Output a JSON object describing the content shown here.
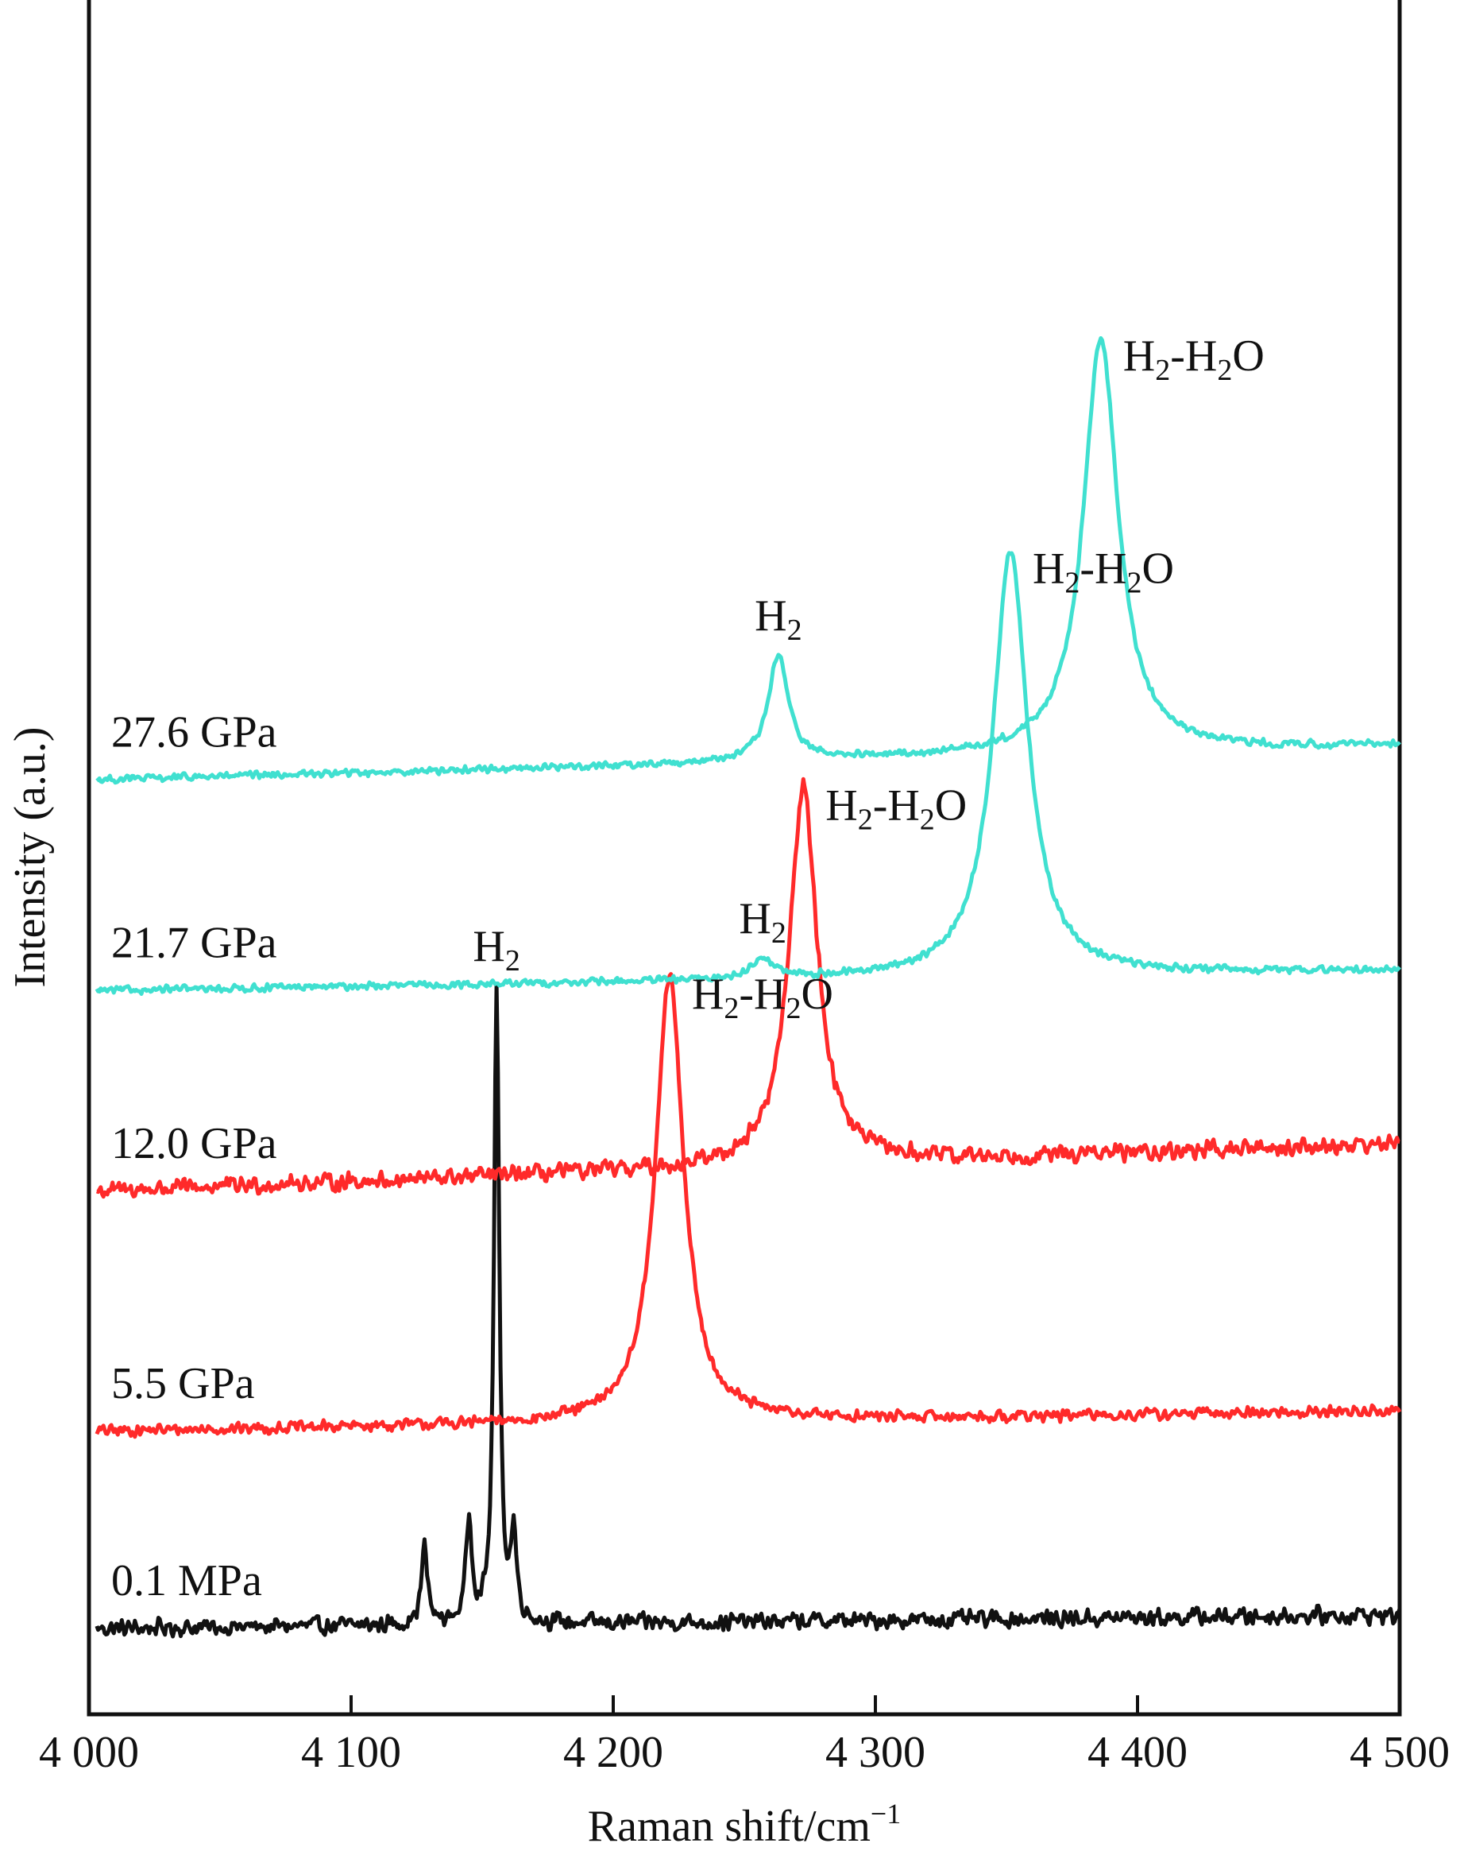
{
  "chart_data": {
    "type": "line",
    "title": "",
    "xlabel": "Raman shift/cm",
    "xlabel_sup": "−1",
    "ylabel": "Intensity (a.u.)",
    "xlim": [
      4000,
      4500
    ],
    "x_ticks": [
      4000,
      4100,
      4200,
      4300,
      4400,
      4500
    ],
    "x_tick_labels": [
      "4 000",
      "4 100",
      "4 200",
      "4 300",
      "4 400",
      "4 500"
    ],
    "y_ticks": [],
    "grid": false,
    "legend": "none",
    "series": [
      {
        "name": "0.1 MPa",
        "color": "#111111",
        "baseline": 0.05,
        "slope": 0.008,
        "noise": 0.006,
        "peaks": [
          {
            "x": 4128,
            "h": 0.045,
            "w": 1.4
          },
          {
            "x": 4145,
            "h": 0.06,
            "w": 1.4
          },
          {
            "x": 4155.5,
            "h": 0.37,
            "w": 1.2
          },
          {
            "x": 4162,
            "h": 0.05,
            "w": 1.3
          }
        ],
        "labels": [
          {
            "text": "H",
            "sub": "2",
            "peak_x": 4155.5
          }
        ]
      },
      {
        "name": "5.5 GPa",
        "color": "#ff2a2a",
        "baseline": 0.165,
        "slope": 0.012,
        "noise": 0.004,
        "peaks": [
          {
            "x": 4221.5,
            "h": 0.26,
            "w": 6.5
          }
        ],
        "labels": [
          {
            "text": "H",
            "sub": "2",
            "text2": "-H",
            "sub2": "2",
            "text3": "O",
            "peak_x": 4221.5
          }
        ]
      },
      {
        "name": "12.0 GPa",
        "color": "#ff2a2a",
        "baseline": 0.305,
        "slope": 0.028,
        "noise": 0.006,
        "peaks": [
          {
            "x": 4272.5,
            "h": 0.22,
            "w": 6.5
          }
        ],
        "labels": [
          {
            "text": "H",
            "sub": "2",
            "text2": "-H",
            "sub2": "2",
            "text3": "O",
            "peak_x": 4272.5
          }
        ]
      },
      {
        "name": "21.7 GPa",
        "color": "#40e0d0",
        "baseline": 0.422,
        "slope": 0.012,
        "noise": 0.0025,
        "peaks": [
          {
            "x": 4257,
            "h": 0.012,
            "w": 5
          },
          {
            "x": 4351.5,
            "h": 0.248,
            "w": 8
          }
        ],
        "labels": [
          {
            "text": "H",
            "sub": "2",
            "peak_x": 4257
          },
          {
            "text": "H",
            "sub": "2",
            "text2": "-H",
            "sub2": "2",
            "text3": "O",
            "peak_x": 4351.5
          }
        ]
      },
      {
        "name": "27.6 GPa",
        "color": "#40e0d0",
        "baseline": 0.545,
        "slope": 0.02,
        "noise": 0.0025,
        "peaks": [
          {
            "x": 4263,
            "h": 0.062,
            "w": 4.5
          },
          {
            "x": 4386,
            "h": 0.242,
            "w": 8
          }
        ],
        "labels": [
          {
            "text": "H",
            "sub": "2",
            "peak_x": 4263
          },
          {
            "text": "H",
            "sub": "2",
            "text2": "-H",
            "sub2": "2",
            "text3": "O",
            "peak_x": 4386
          }
        ]
      }
    ]
  }
}
